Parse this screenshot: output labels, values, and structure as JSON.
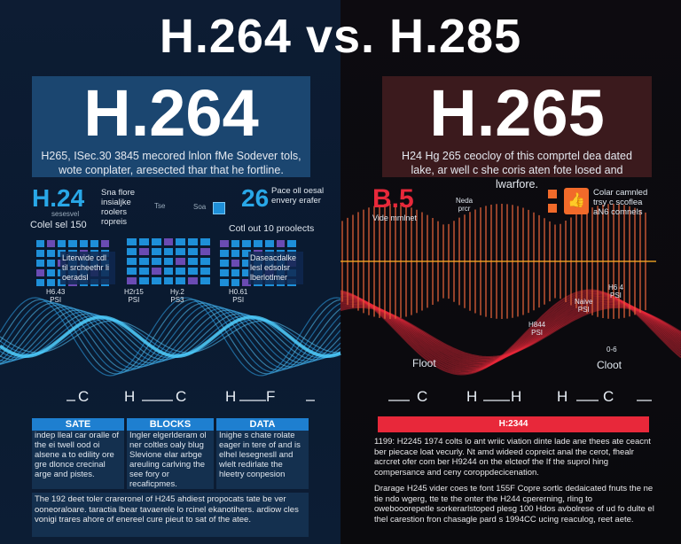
{
  "title": "H.264 vs. H.285",
  "left": {
    "banner_title": "H.264",
    "banner_text": "H265, ISec.30 3845 mecored lnlon fMe Sodever tols, wote conplater, aresected thar that he fortline.",
    "stat1_value": "H.24",
    "stat1_sub": "sesesvel",
    "stat1_caption": "Colel sel 150",
    "stat1_note": "Sna flore insialjke roolers ropreis",
    "stat2_value": "26",
    "stat2_note": "Pace oll oesal envery erafer",
    "stat2_caption": "Cotl out 10 proolects",
    "mini_labels": [
      "Tse",
      "Soa"
    ],
    "grid_labels": [
      "Literwide cdl til srcheethr li oeradsl",
      "Daseacdalke lesl edsolsr lberlotlmer"
    ],
    "tick_labels": [
      {
        "t": "H6.43",
        "s": "PSI"
      },
      {
        "t": "H2r15",
        "s": "PSI"
      },
      {
        "t": "Hy.2",
        "s": "PS3"
      },
      {
        "t": "H0.61",
        "s": "PSI"
      }
    ],
    "axis": [
      "C",
      "H",
      "C",
      "H",
      "F"
    ],
    "cards": [
      {
        "header": "SATE",
        "text": "indep lleal car oralle of the ei twell ood oi alsene a to edility ore gre dlonce crecinal arge and pistes."
      },
      {
        "header": "BLOCKS",
        "text": "Ingler elgerlderam ol ner coltles oaly blug Slevione elar arbge areuling carlving the see fory or recaficpmes."
      },
      {
        "header": "DATA",
        "text": "Inighe s chate rolate eager in tere of and is elhel lesegnesll and wlelt redirlate the hleetry conpesion"
      }
    ],
    "footer_text": "The 192 deet toler crareronel of H245 ahdiest propocats tate be ver ooneoraloare. taractia lbear tavaerele lo rcinel ekanotihers. ardiow cles vonigi trares ahore of enereel cure pieut to sat of the atee."
  },
  "right": {
    "banner_title": "H.265",
    "banner_text": "H24 Hg 265 ceocloy of this comprtel dea dated lake, ar well c she coris aten fote losed and lwarfore.",
    "stat_value": "B.5",
    "stat_caption": "Vide mmlnet",
    "labels": [
      {
        "t": "Neda",
        "s": "prcr"
      },
      {
        "t": "Naive",
        "s": "PSI"
      },
      {
        "t": "H6 4",
        "s": "PSI"
      },
      {
        "t": "H844",
        "s": "PSI"
      }
    ],
    "callouts": [
      "Floot",
      "0-6",
      "Cloot"
    ],
    "icon_note": "Colar camnled trsy c scoflea aN6 comnels",
    "axis": [
      "C",
      "H",
      "H",
      "H",
      "C"
    ],
    "bar_label": "H:2344",
    "para1": "1199: H2245 1974 colts lo ant wriic viation dinte lade ane thees ate ceacnt ber piecace loat vecurly. Nt amd wideed copreict anal the cerot, fhealr acrcret ofer com ber H9244 on the elcteof the If the suprol hing compersance and ceny coroppdecicenation.",
    "para2": "Drarage H245 vider coes te font 155F Copre sortlc dedaicated fnuts the ne tie ndo wgerg, tte te the onter the H244 cpererning, rling to owebooorepetle sorkerarlstoped plesg 100 Hdos avbolrese of ud fo dulte el thel carestion fron chasagle pard s 1994CC ucing reaculog, reet aete."
  },
  "colors": {
    "blue_accent": "#29a8e8",
    "red_accent": "#e8283a",
    "orange": "#f26a2a"
  }
}
